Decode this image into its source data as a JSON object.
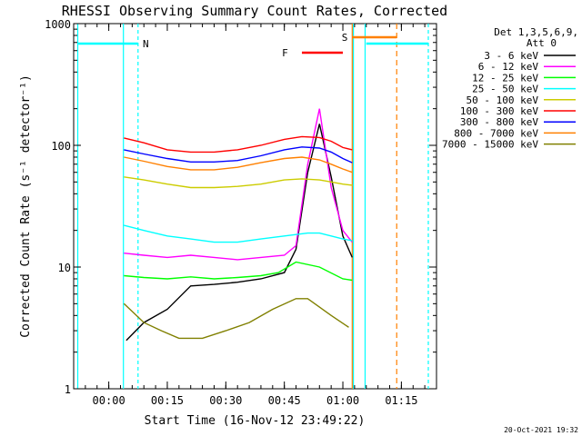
{
  "chart_data": {
    "type": "line",
    "title": "RHESSI Observing Summary Count Rates, Corrected",
    "xlabel": "Start Time (16-Nov-12 23:49:22)",
    "ylabel": "Corrected Count Rate (s⁻¹ detector⁻¹)",
    "yscale": "log",
    "ylim": [
      1,
      1000
    ],
    "y_ticks": [
      "1",
      "10",
      "100",
      "1000"
    ],
    "x_minutes_range": [
      -3,
      28
    ],
    "x_ticks": [
      {
        "label": "00:00",
        "minute": 0
      },
      {
        "label": "00:15",
        "minute": 5
      },
      {
        "label": "00:30",
        "minute": 10
      },
      {
        "label": "00:45",
        "minute": 15
      },
      {
        "label": "01:00",
        "minute": 20
      },
      {
        "label": "01:15",
        "minute": 25
      }
    ],
    "legend_header": [
      "Det 1,3,5,6,9,",
      "Att 0"
    ],
    "legend_placement": "right",
    "series": [
      {
        "name": "3 - 6 keV",
        "color": "#000000",
        "x": [
          1.5,
          3,
          5,
          7,
          9,
          11,
          13,
          15,
          16,
          17,
          18,
          19,
          20,
          20.8
        ],
        "y": [
          2.5,
          3.5,
          4.5,
          7,
          7.2,
          7.5,
          8,
          9,
          14,
          60,
          150,
          55,
          18,
          12
        ]
      },
      {
        "name": "6 - 12 keV",
        "color": "#ff00ff",
        "x": [
          1.3,
          3,
          5,
          7,
          9,
          11,
          13,
          15,
          16,
          17,
          18,
          19,
          20,
          20.8
        ],
        "y": [
          13,
          12.5,
          12,
          12.5,
          12,
          11.5,
          12,
          12.5,
          15,
          70,
          200,
          45,
          20,
          16
        ]
      },
      {
        "name": "12 - 25 keV",
        "color": "#00ff00",
        "x": [
          1.3,
          3,
          5,
          7,
          9,
          11,
          13,
          14.5,
          16,
          18,
          20,
          20.8
        ],
        "y": [
          8.5,
          8.2,
          8,
          8.3,
          8,
          8.2,
          8.5,
          9,
          11,
          10,
          8,
          7.8
        ]
      },
      {
        "name": "25 - 50 keV",
        "color": "#00ffff",
        "x": [
          1.3,
          3,
          5,
          7,
          9,
          11,
          13,
          15,
          17,
          18,
          19,
          20,
          20.8
        ],
        "y": [
          22,
          20,
          18,
          17,
          16,
          16,
          17,
          18,
          19,
          19,
          18,
          17,
          16.5
        ]
      },
      {
        "name": "50 - 100 keV",
        "color": "#cccc00",
        "x": [
          1.3,
          3,
          5,
          7,
          9,
          11,
          13,
          15,
          16.5,
          18,
          19,
          20,
          20.8
        ],
        "y": [
          55,
          52,
          48,
          45,
          45,
          46,
          48,
          52,
          53,
          52,
          50,
          48,
          47
        ]
      },
      {
        "name": "100 - 300 keV",
        "color": "#ff0000",
        "x": [
          1.3,
          3,
          5,
          7,
          9,
          11,
          13,
          15,
          16.5,
          18,
          19,
          20,
          20.8
        ],
        "y": [
          115,
          105,
          92,
          88,
          88,
          92,
          100,
          112,
          118,
          116,
          108,
          96,
          92
        ]
      },
      {
        "name": "300 - 800 keV",
        "color": "#0000ff",
        "x": [
          1.3,
          3,
          5,
          7,
          9,
          11,
          13,
          15,
          16.5,
          18,
          19,
          20,
          20.8
        ],
        "y": [
          92,
          85,
          78,
          73,
          73,
          75,
          82,
          92,
          97,
          95,
          88,
          78,
          72
        ]
      },
      {
        "name": "800 - 7000 keV",
        "color": "#ff8000",
        "x": [
          1.3,
          3,
          5,
          7,
          9,
          11,
          13,
          15,
          16.5,
          18,
          19,
          20,
          20.8
        ],
        "y": [
          80,
          74,
          67,
          63,
          63,
          66,
          72,
          78,
          80,
          76,
          70,
          64,
          60
        ]
      },
      {
        "name": "7000 - 15000 keV",
        "color": "#808000",
        "x": [
          1.3,
          3,
          4.5,
          6,
          8,
          10,
          12,
          14,
          16,
          17,
          19,
          20.5
        ],
        "y": [
          5,
          3.5,
          3,
          2.6,
          2.6,
          3,
          3.5,
          4.5,
          5.5,
          5.5,
          4,
          3.2
        ]
      }
    ],
    "annotations": [
      {
        "text": "N",
        "color": "#00ffff"
      },
      {
        "text": "F",
        "color": "#ff0000"
      },
      {
        "text": "S",
        "color": "#ff8000"
      }
    ],
    "footer": "20-Oct-2021 19:32"
  }
}
